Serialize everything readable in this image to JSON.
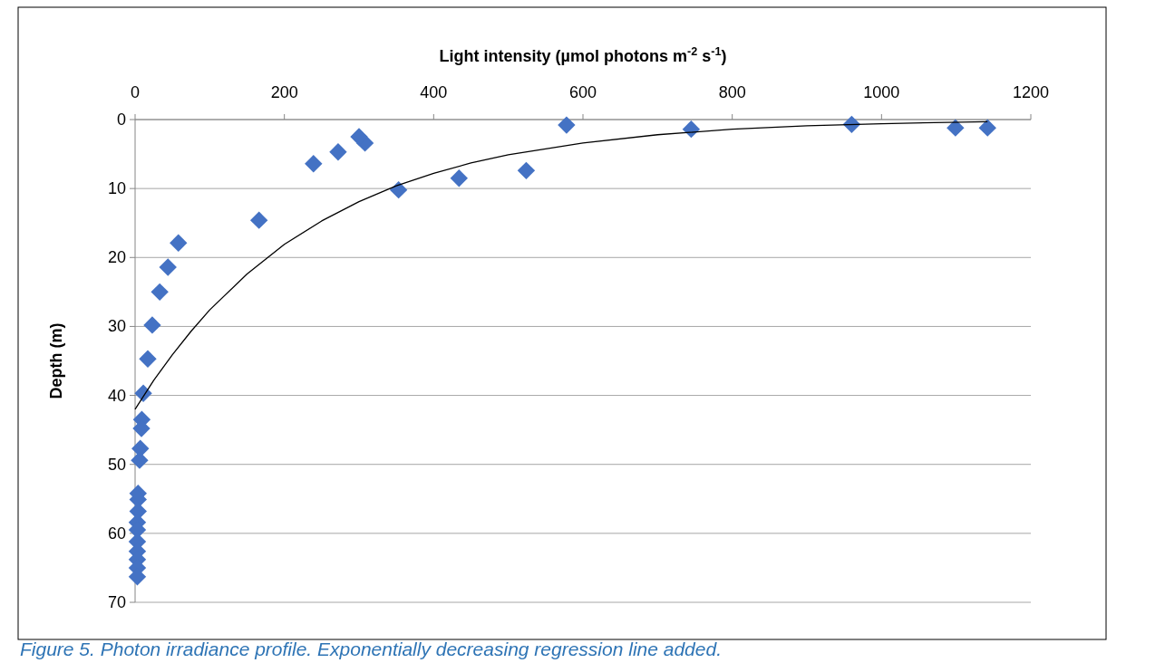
{
  "chart_data": {
    "type": "scatter",
    "xlabel": "Light intensity (µmol photons m$^{-2}$ s$^{-1}$)",
    "ylabel": "Depth (m)",
    "xlim": [
      0,
      1200
    ],
    "xticks": [
      0,
      200,
      400,
      600,
      800,
      1000,
      1200
    ],
    "ylim": [
      70,
      0
    ],
    "yticks": [
      0,
      10,
      20,
      30,
      40,
      50,
      60,
      70
    ],
    "grid": "y",
    "annotations": [
      "Figure 5. Photon irradiance profile. Exponentially decreasing regression line added."
    ],
    "series": [
      {
        "color": "#4472c4",
        "marker": "diamond",
        "x": [
          1142,
          1099,
          960,
          745,
          578,
          524,
          434,
          353,
          308,
          300,
          272,
          239,
          166,
          58,
          44,
          33,
          23,
          17,
          11,
          9,
          8.5,
          7,
          6,
          4,
          4,
          4,
          3,
          3,
          3,
          3,
          3,
          3,
          3
        ],
        "values": [
          1.2,
          1.2,
          0.7,
          1.4,
          0.8,
          7.4,
          8.5,
          10.2,
          3.4,
          2.5,
          4.7,
          6.4,
          14.6,
          17.9,
          21.4,
          25.0,
          29.8,
          34.7,
          39.7,
          43.5,
          44.8,
          47.7,
          49.4,
          54.2,
          55.1,
          56.8,
          58.4,
          59.5,
          61.2,
          62.6,
          63.8,
          65.0,
          66.3
        ]
      },
      {
        "type": "line",
        "color": "#000000",
        "marker": "none",
        "line_style": "solid",
        "x": [
          0,
          25,
          50,
          75,
          100,
          150,
          200,
          250,
          300,
          350,
          400,
          450,
          500,
          600,
          700,
          800,
          900,
          1000,
          1142
        ],
        "values": [
          42.0,
          37.8,
          34.1,
          30.7,
          27.6,
          22.4,
          18.1,
          14.7,
          11.9,
          9.6,
          7.8,
          6.3,
          5.1,
          3.4,
          2.2,
          1.4,
          0.9,
          0.6,
          0.3
        ]
      }
    ]
  }
}
